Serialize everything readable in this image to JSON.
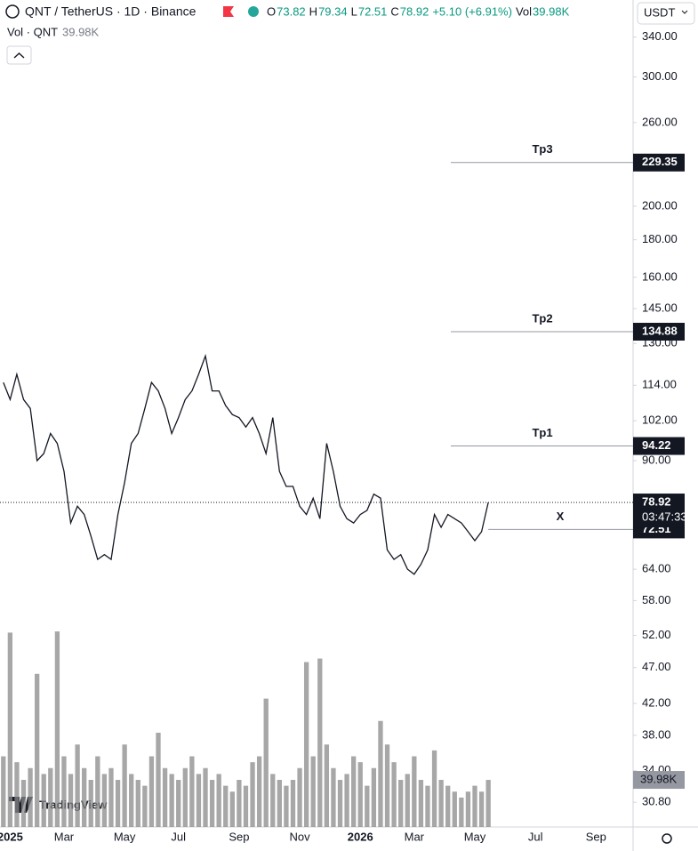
{
  "header": {
    "symbol": "QNT / TetherUS · 1D · Binance",
    "ohlc": [
      {
        "key": "O",
        "val": "73.82"
      },
      {
        "key": "H",
        "val": "79.34"
      },
      {
        "key": "L",
        "val": "72.51"
      },
      {
        "key": "C",
        "val": "78.92"
      }
    ],
    "change": "+5.10 (+6.91%)",
    "vol_key": "Vol",
    "vol_val": "39.98K",
    "currency": "USDT",
    "logo": "TradingView",
    "countdown": "03:47:33"
  },
  "chart_data": {
    "type": "line",
    "log_scale": true,
    "grid": false,
    "categories": [
      null,
      "2025",
      null,
      null,
      null,
      null,
      null,
      null,
      null,
      "Mar",
      null,
      null,
      null,
      null,
      null,
      null,
      null,
      null,
      "May",
      null,
      null,
      null,
      null,
      null,
      null,
      null,
      "Jul",
      null,
      null,
      null,
      null,
      null,
      null,
      null,
      null,
      "Sep",
      null,
      null,
      null,
      null,
      null,
      null,
      null,
      null,
      "Nov",
      null,
      null,
      null,
      null,
      null,
      null,
      null,
      null,
      "2026",
      null,
      null,
      null,
      null,
      null,
      null,
      null,
      "Mar",
      null,
      null,
      null,
      null,
      null,
      null,
      null,
      null,
      "May",
      null,
      null,
      null,
      null,
      null,
      null,
      null,
      null,
      "Jul",
      null,
      null,
      null,
      null,
      null,
      null,
      null,
      null,
      "Sep",
      null,
      null,
      null,
      null,
      null
    ],
    "series": [
      {
        "name": "QNT / TetherUS · 1D · Binance",
        "color": "#131722",
        "values": [
          115,
          109,
          118,
          109,
          106,
          90,
          92,
          98,
          95,
          87,
          74,
          78,
          76,
          71,
          66,
          67,
          66,
          76,
          84,
          95,
          98,
          106,
          115,
          112,
          106,
          98,
          103,
          109,
          112,
          118,
          125,
          112,
          112,
          107,
          104,
          103,
          100,
          103,
          98,
          92,
          103,
          87,
          83,
          83,
          78,
          76,
          80,
          75,
          95,
          87,
          78,
          75,
          74,
          76,
          77,
          81,
          80,
          68,
          66,
          67,
          64,
          63,
          65,
          68,
          76,
          73,
          76,
          75,
          74,
          72,
          70,
          72,
          78.92,
          null,
          null,
          null,
          null,
          null,
          null,
          null,
          null,
          null,
          null,
          null,
          null,
          null,
          null,
          null,
          null,
          null,
          null,
          null,
          null,
          null
        ]
      },
      {
        "name": "Vol · QNT",
        "color": "#8a8a8a",
        "axis": "y2",
        "values": [
          60,
          165,
          55,
          40,
          50,
          130,
          45,
          50,
          166,
          60,
          45,
          70,
          50,
          40,
          60,
          45,
          50,
          40,
          70,
          45,
          40,
          35,
          60,
          80,
          50,
          45,
          40,
          50,
          60,
          45,
          50,
          40,
          45,
          35,
          30,
          40,
          35,
          55,
          60,
          109,
          45,
          40,
          35,
          40,
          50,
          140,
          60,
          143,
          70,
          50,
          40,
          45,
          60,
          55,
          35,
          50,
          90,
          70,
          55,
          40,
          45,
          60,
          40,
          35,
          65,
          40,
          35,
          30,
          25,
          30,
          35,
          30,
          39.98,
          null,
          null,
          null,
          null,
          null,
          null,
          null,
          null,
          null,
          null,
          null,
          null,
          null,
          null,
          null,
          null,
          null,
          null,
          null,
          null,
          null
        ],
        "value_labels": [
          null,
          null,
          null,
          null,
          null,
          null,
          null,
          null,
          null,
          null,
          null,
          null,
          null,
          null,
          null,
          null,
          null,
          null,
          null,
          null,
          null,
          null,
          null,
          null,
          null,
          null,
          null,
          null,
          null,
          null,
          null,
          null,
          null,
          null,
          null,
          null,
          null,
          null,
          null,
          null,
          null,
          null,
          null,
          null,
          null,
          null,
          null,
          null,
          null,
          null,
          null,
          null,
          null,
          null,
          null,
          null,
          null,
          null,
          null,
          null,
          null,
          null,
          null,
          null,
          null,
          null,
          null,
          null,
          null,
          null,
          null,
          null,
          "39.98K",
          null,
          null,
          null,
          null,
          null,
          null,
          null,
          null,
          null,
          null,
          null,
          null,
          null,
          null,
          null,
          null,
          null,
          null,
          null,
          null,
          null
        ]
      }
    ],
    "ylim": [
      28.5,
      382
    ],
    "y2lim": [
      0,
      702
    ],
    "yticks": [
      {
        "value": 340,
        "label": "340.00"
      },
      {
        "value": 300,
        "label": "300.00"
      },
      {
        "value": 260,
        "label": "260.00"
      },
      {
        "value": 200,
        "label": "200.00"
      },
      {
        "value": 180,
        "label": "180.00"
      },
      {
        "value": 160,
        "label": "160.00"
      },
      {
        "value": 145,
        "label": "145.00"
      },
      {
        "value": 130,
        "label": "130.00"
      },
      {
        "value": 114,
        "label": "114.00"
      },
      {
        "value": 102,
        "label": "102.00"
      },
      {
        "value": 90,
        "label": "90.00"
      },
      {
        "value": 64,
        "label": "64.00"
      },
      {
        "value": 58,
        "label": "58.00"
      },
      {
        "value": 52,
        "label": "52.00"
      },
      {
        "value": 47,
        "label": "47.00"
      },
      {
        "value": 42,
        "label": "42.00"
      },
      {
        "value": 38,
        "label": "38.00"
      },
      {
        "value": 34,
        "label": "34.00"
      },
      {
        "value": 30.8,
        "label": "30.80"
      }
    ],
    "levels": [
      {
        "label": "Tp3",
        "value": 229.35
      },
      {
        "label": "Tp2",
        "value": 134.88
      },
      {
        "label": "Tp1",
        "value": 94.22
      },
      {
        "label": "X",
        "value": 72.51
      }
    ],
    "last_price": 78.92
  }
}
